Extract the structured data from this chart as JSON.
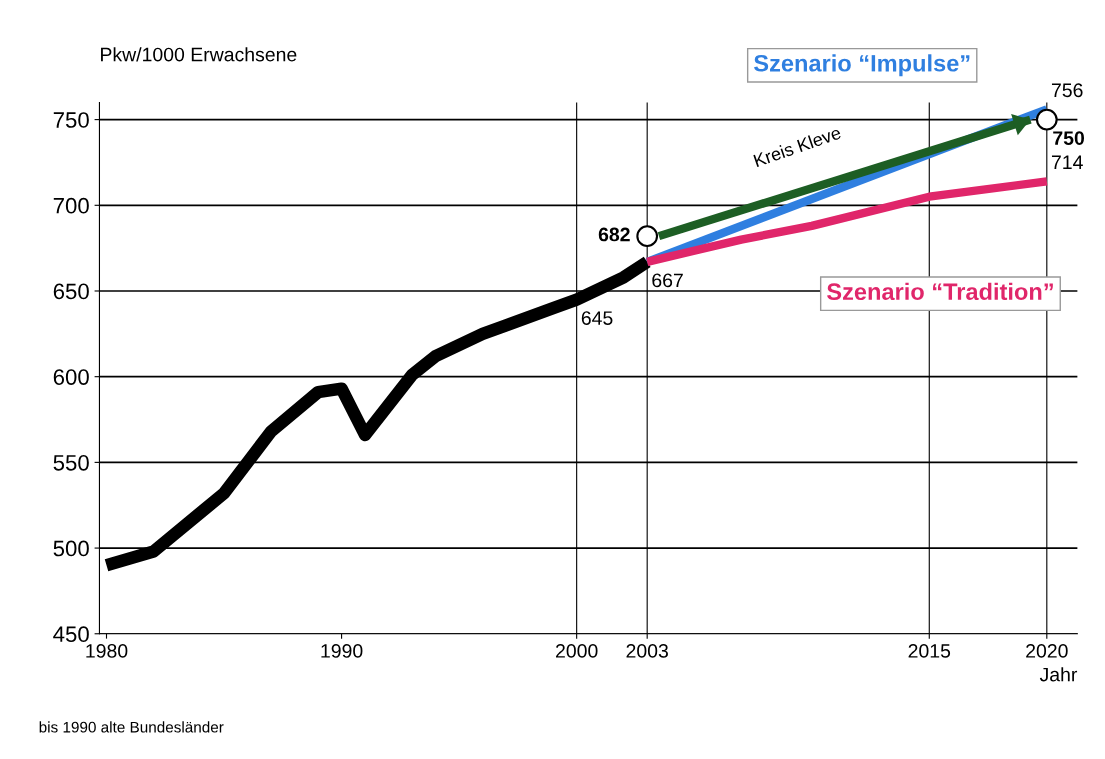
{
  "chart_data": {
    "type": "line",
    "ylabel": "Pkw/1000 Erwachsene",
    "xlabel": "Jahr",
    "xlim": [
      1979.7,
      2021.3
    ],
    "ylim": [
      450,
      760
    ],
    "xticks": [
      1980,
      1990,
      2000,
      2003,
      2015,
      2020
    ],
    "yticks": [
      450,
      500,
      550,
      600,
      650,
      700,
      750
    ],
    "grid": "y",
    "ref_lines": [
      {
        "axis": "x",
        "value": 2000
      },
      {
        "axis": "x",
        "value": 2003
      },
      {
        "axis": "x",
        "value": 2015
      },
      {
        "axis": "x",
        "value": 2020
      }
    ],
    "series": [
      {
        "color": "#000000",
        "x": [
          1980,
          1982,
          1985,
          1987,
          1989,
          1990,
          1991,
          1993,
          1994,
          1996,
          1997,
          1999,
          2000,
          2002,
          2003
        ],
        "values": [
          490,
          498,
          532,
          568,
          591,
          593,
          566,
          601,
          612,
          625,
          630,
          640,
          645,
          658,
          667
        ]
      },
      {
        "name": "Szenario “Impulse”",
        "color": "#2f7fe0",
        "x": [
          2003,
          2020
        ],
        "values": [
          667,
          756
        ]
      },
      {
        "name": "Szenario “Tradition”",
        "color": "#e0266a",
        "x": [
          2003,
          2007,
          2010,
          2015,
          2020
        ],
        "values": [
          667,
          680,
          688,
          705,
          714
        ]
      },
      {
        "name": "Kreis Kleve",
        "color": "#1d5e24",
        "x": [
          2003.5,
          2019.3
        ],
        "values": [
          682,
          750
        ]
      },
      {
        "type": "scatter",
        "color": "#000000",
        "marker": "circle",
        "x": [
          2003,
          2020
        ],
        "values": [
          682,
          750
        ],
        "value_labels": [
          "682",
          "750"
        ]
      }
    ],
    "annotations": [
      {
        "text": "645",
        "x": 2000,
        "y": 645
      },
      {
        "text": "667",
        "x": 2003,
        "y": 667
      },
      {
        "text": "714",
        "x": 2020,
        "y": 714
      },
      {
        "text": "756",
        "x": 2020,
        "y": 756
      },
      "bis 1990 alte Bundesländer"
    ]
  }
}
